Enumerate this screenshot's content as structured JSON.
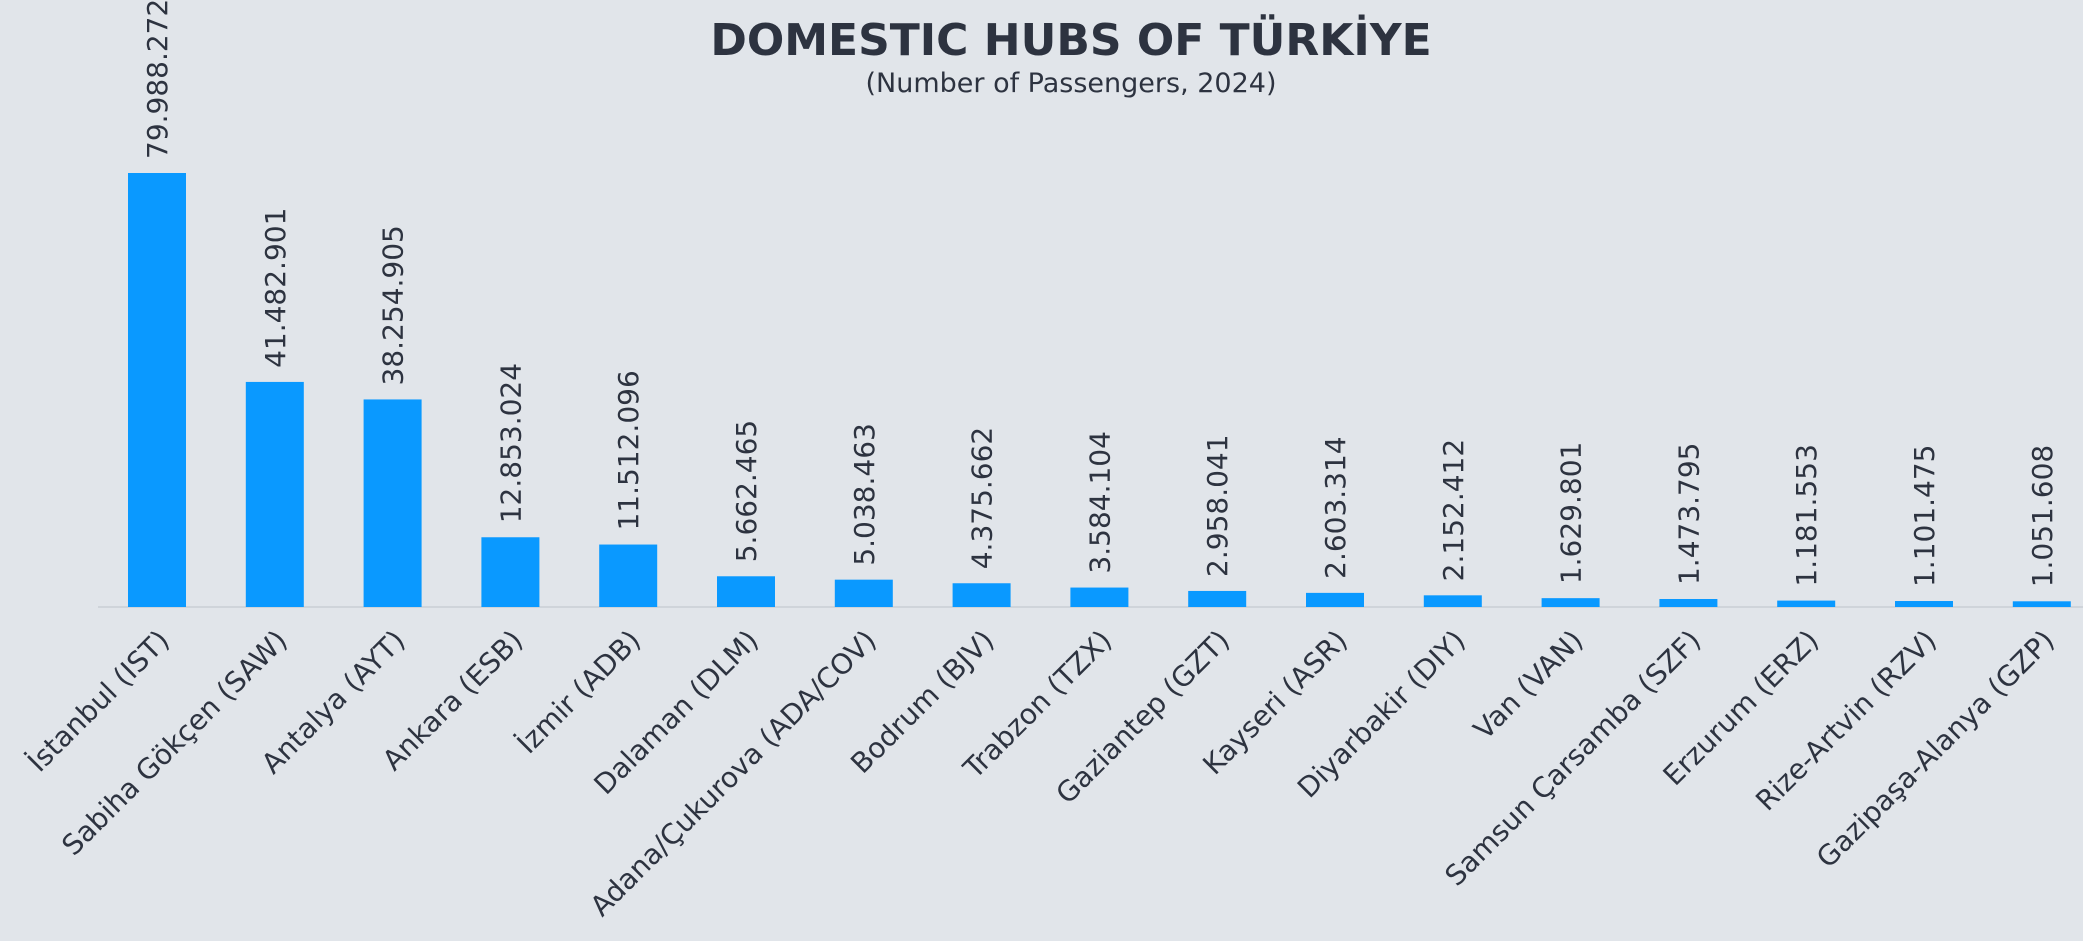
{
  "chart_data": {
    "type": "bar",
    "title": "DOMESTIC HUBS OF TÜRKİYE",
    "subtitle": "(Number of Passengers, 2024)",
    "categories": [
      "İstanbul (IST)",
      "Sabiha Gökçen (SAW)",
      "Antalya (AYT)",
      "Ankara (ESB)",
      "İzmir (ADB)",
      "Dalaman (DLM)",
      "Adana/Çukurova (ADA/COV)",
      "Bodrum (BJV)",
      "Trabzon (TZX)",
      "Gaziantep (GZT)",
      "Kayseri (ASR)",
      "Diyarbakir (DIY)",
      "Van (VAN)",
      "Samsun Çarsamba (SZF)",
      "Erzurum (ERZ)",
      "Rize-Artvin (RZV)",
      "Gazipaşa-Alanya (GZP)"
    ],
    "values": [
      79988272,
      41482901,
      38254905,
      12853024,
      11512096,
      5662465,
      5038463,
      4375662,
      3584104,
      2958041,
      2603314,
      2152412,
      1629801,
      1473795,
      1181553,
      1101475,
      1051608
    ],
    "value_labels": [
      "79.988.272",
      "41.482.901",
      "38.254.905",
      "12.853.024",
      "11.512.096",
      "5.662.465",
      "5.038.463",
      "4.375.662",
      "3.584.104",
      "2.958.041",
      "2.603.314",
      "2.152.412",
      "1.629.801",
      "1.473.795",
      "1.181.553",
      "1.101.475",
      "1.051.608"
    ],
    "color": "#0a99ff"
  }
}
